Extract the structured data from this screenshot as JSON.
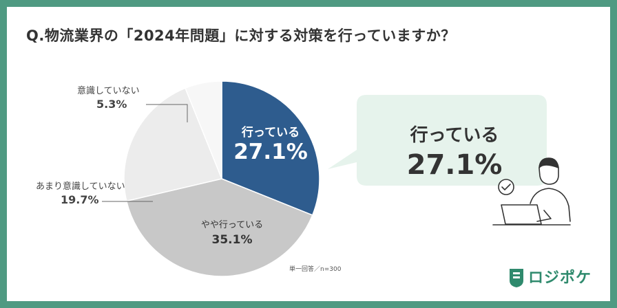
{
  "title": "Q.物流業界の「2024年問題」に対する対策を行っていますか？",
  "note": "単一回答／n=300",
  "brand": {
    "name": "ロジポケ"
  },
  "highlight": {
    "label": "行っている",
    "value": "27.1%"
  },
  "colors": {
    "frame": "#4f9a82",
    "bubble": "#e6f3ec",
    "brand": "#2f8a6d"
  },
  "chart_data": {
    "type": "pie",
    "slices": [
      {
        "label": "行っている",
        "value": 27.1,
        "display": "27.1%",
        "color": "#2e5c8e"
      },
      {
        "label": "やや行っている",
        "value": 35.1,
        "display": "35.1%",
        "color": "#c8c8c8"
      },
      {
        "label": "あまり意識していない",
        "value": 19.7,
        "display": "19.7%",
        "color": "#ececec"
      },
      {
        "label": "意識していない",
        "value": 5.3,
        "display": "5.3%",
        "color": "#f7f7f7"
      }
    ]
  }
}
